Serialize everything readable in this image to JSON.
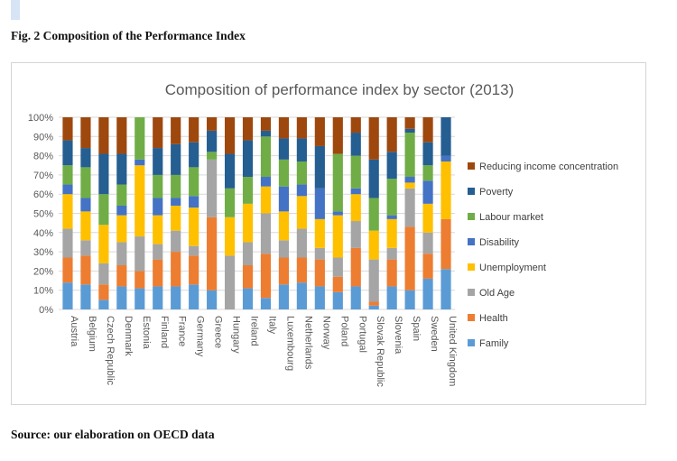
{
  "page": {
    "figure_title": "Fig. 2 Composition of the Performance Index",
    "source": "Source: our elaboration on OECD data"
  },
  "chart_data": {
    "type": "bar",
    "stacked": true,
    "title": "Composition of performance index by sector (2013)",
    "xlabel": "",
    "ylabel": "",
    "ylim": [
      0,
      100
    ],
    "y_ticks": [
      "0%",
      "10%",
      "20%",
      "30%",
      "40%",
      "50%",
      "60%",
      "70%",
      "80%",
      "90%",
      "100%"
    ],
    "grid": true,
    "legend_position": "right",
    "categories": [
      "Austria",
      "Belgium",
      "Czech Republic",
      "Denmark",
      "Estonia",
      "Finland",
      "France",
      "Germany",
      "Greece",
      "Hungary",
      "Ireland",
      "Italy",
      "Luxembourg",
      "Netherlands",
      "Norway",
      "Poland",
      "Portugal",
      "Slovak Republic",
      "Slovenia",
      "Spain",
      "Sweden",
      "United Kingdom"
    ],
    "series": [
      {
        "name": "Family",
        "color": "#5b9bd5",
        "values": [
          14,
          13,
          5,
          12,
          11,
          12,
          12,
          13,
          10,
          0,
          11,
          6,
          13,
          14,
          12,
          9,
          12,
          2,
          12,
          10,
          16,
          21
        ]
      },
      {
        "name": "Health",
        "color": "#ed7d31",
        "values": [
          13,
          15,
          8,
          11,
          9,
          14,
          18,
          15,
          38,
          0,
          12,
          23,
          14,
          13,
          14,
          8,
          20,
          2,
          14,
          33,
          13,
          26
        ]
      },
      {
        "name": "Old Age",
        "color": "#a5a5a5",
        "values": [
          15,
          8,
          11,
          12,
          18,
          8,
          11,
          5,
          30,
          28,
          12,
          21,
          9,
          15,
          6,
          10,
          14,
          22,
          6,
          20,
          11,
          0
        ]
      },
      {
        "name": "Unemployment",
        "color": "#ffc000",
        "values": [
          18,
          15,
          20,
          14,
          37,
          15,
          13,
          20,
          0,
          20,
          20,
          14,
          15,
          17,
          15,
          22,
          14,
          15,
          15,
          3,
          15,
          30
        ]
      },
      {
        "name": "Disability",
        "color": "#4472c4",
        "values": [
          5,
          7,
          0,
          5,
          3,
          9,
          4,
          6,
          0,
          0,
          0,
          5,
          13,
          6,
          16,
          2,
          3,
          0,
          2,
          3,
          12,
          3
        ]
      },
      {
        "name": "Labour market",
        "color": "#70ad47",
        "values": [
          10,
          16,
          16,
          11,
          22,
          12,
          12,
          15,
          4,
          15,
          14,
          21,
          14,
          12,
          0,
          30,
          17,
          17,
          19,
          23,
          8,
          0
        ]
      },
      {
        "name": "Poverty",
        "color": "#255e91",
        "values": [
          13,
          10,
          21,
          16,
          0,
          14,
          16,
          13,
          11,
          18,
          19,
          3,
          11,
          12,
          22,
          0,
          12,
          20,
          14,
          2,
          12,
          20
        ]
      },
      {
        "name": "Reducing income concentration",
        "color": "#9e480e",
        "values": [
          12,
          16,
          19,
          19,
          0,
          16,
          14,
          13,
          7,
          19,
          12,
          7,
          11,
          11,
          15,
          19,
          8,
          22,
          18,
          6,
          13,
          0
        ]
      }
    ]
  }
}
